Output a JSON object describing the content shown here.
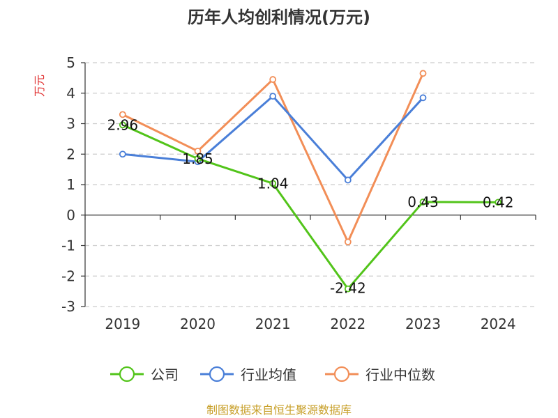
{
  "chart_data": {
    "type": "line",
    "title": "历年人均创利情况(万元)",
    "ylabel": "万元",
    "xlabel": "",
    "categories": [
      "2019",
      "2020",
      "2021",
      "2022",
      "2023",
      "2024"
    ],
    "ylim": [
      -3,
      5
    ],
    "yticks": [
      "5",
      "4",
      "3",
      "2",
      "1",
      "0",
      "-1",
      "-2",
      "-3"
    ],
    "grid": true,
    "legend_position": "bottom",
    "series": [
      {
        "name": "公司",
        "color": "#52c41a",
        "values": [
          2.96,
          1.85,
          1.04,
          -2.42,
          0.43,
          0.42
        ],
        "labels": [
          "2.96",
          "1.85",
          "1.04",
          "-2.42",
          "0.43",
          "0.42"
        ]
      },
      {
        "name": "行业均值",
        "color": "#4a7fd8",
        "values": [
          2.0,
          1.75,
          3.9,
          1.15,
          3.85,
          null
        ]
      },
      {
        "name": "行业中位数",
        "color": "#f28e57",
        "values": [
          3.3,
          2.1,
          4.45,
          -0.88,
          4.65,
          null
        ]
      }
    ]
  },
  "source_text": "制图数据来自恒生聚源数据库",
  "colors": {
    "source": "#c8a02a",
    "ylabel": "#e03030"
  }
}
